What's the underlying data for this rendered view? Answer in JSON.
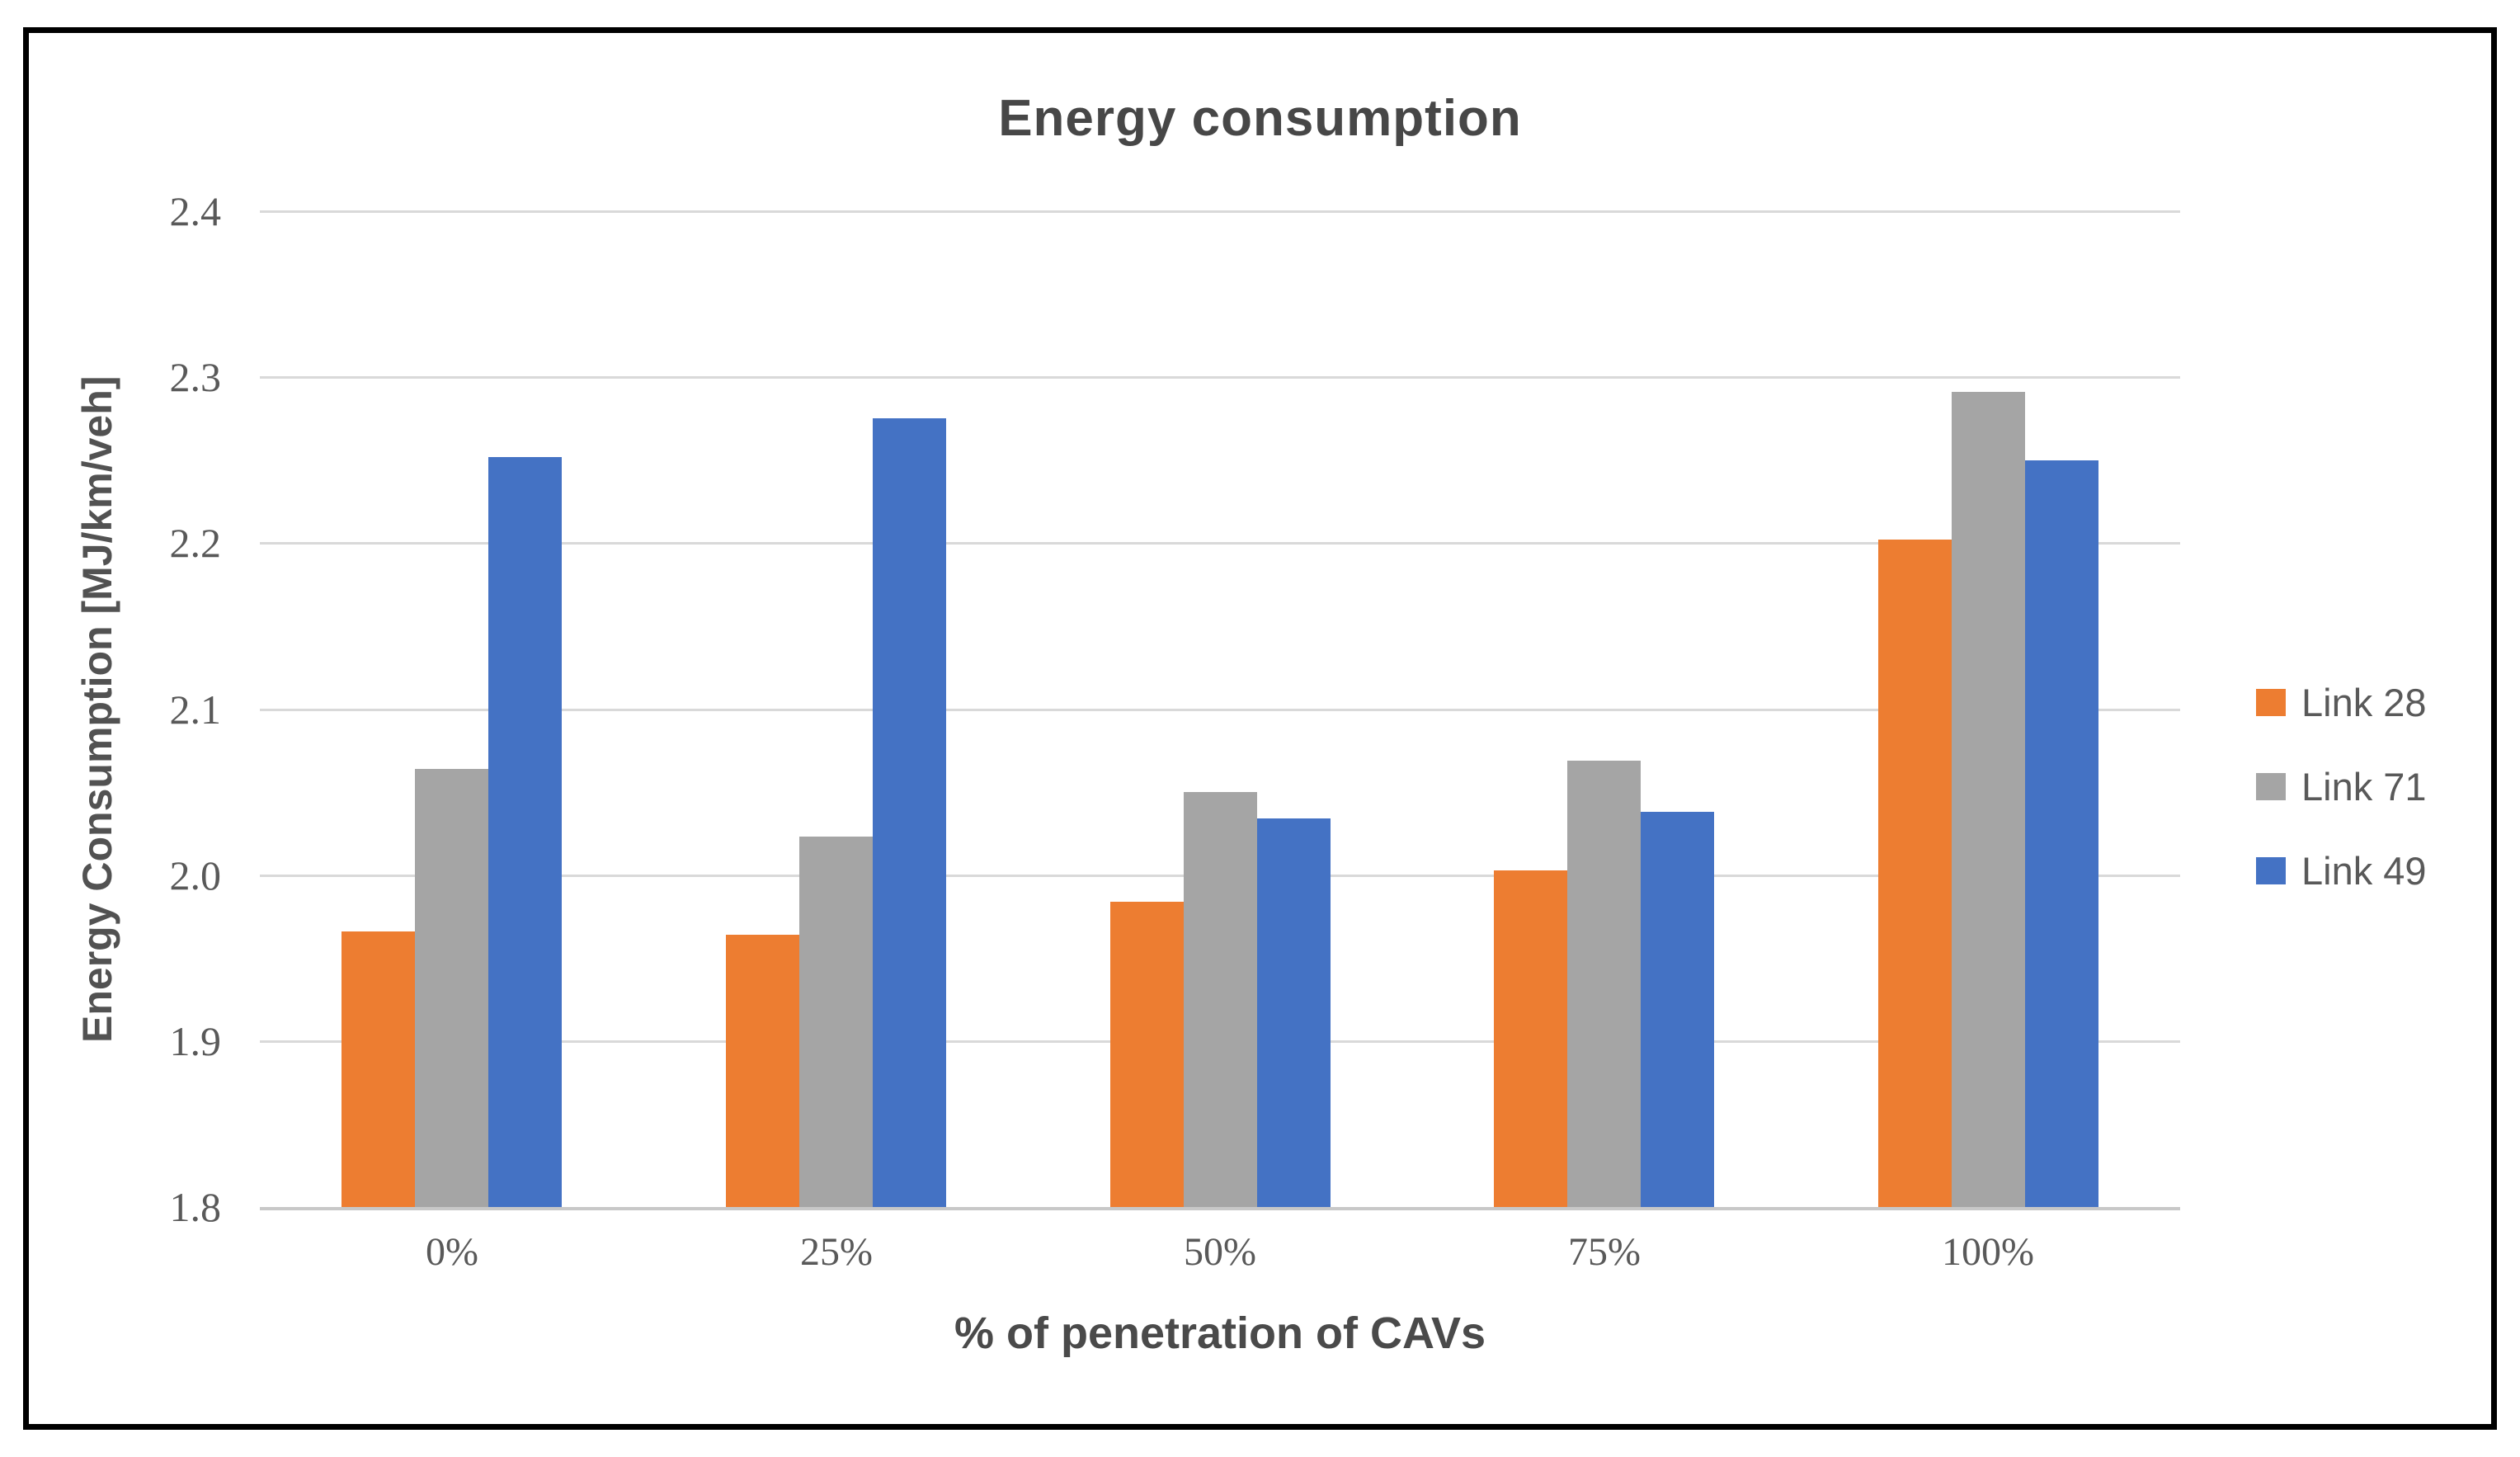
{
  "chart_data": {
    "type": "bar",
    "title": "Energy consumption",
    "xlabel": "% of penetration of CAVs",
    "ylabel": "Energy Consumption  [MJ/km/veh]",
    "categories": [
      "0%",
      "25%",
      "50%",
      "75%",
      "100%"
    ],
    "series": [
      {
        "name": "Link 28",
        "color": "#ED7D31",
        "values": [
          1.966,
          1.964,
          1.984,
          2.003,
          2.202
        ]
      },
      {
        "name": "Link 71",
        "color": "#A5A5A5",
        "values": [
          2.064,
          2.023,
          2.05,
          2.069,
          2.291
        ]
      },
      {
        "name": "Link 49",
        "color": "#4472C4",
        "values": [
          2.252,
          2.275,
          2.034,
          2.038,
          2.25
        ]
      }
    ],
    "ylim": [
      1.8,
      2.4
    ],
    "ytick_step": 0.1,
    "ytick_labels": [
      "2.4",
      "2.3",
      "2.2",
      "2.1",
      "2.0",
      "1.9",
      "1.8"
    ],
    "grid": true,
    "legend_position": "right",
    "colors": {
      "gridline": "#D9D9D9",
      "axis_line": "#C8C8C8",
      "frame_border": "#000000",
      "title_text": "#474747",
      "axis_title_text": "#525252",
      "tick_text": "#595959",
      "legend_text": "#595959"
    }
  }
}
